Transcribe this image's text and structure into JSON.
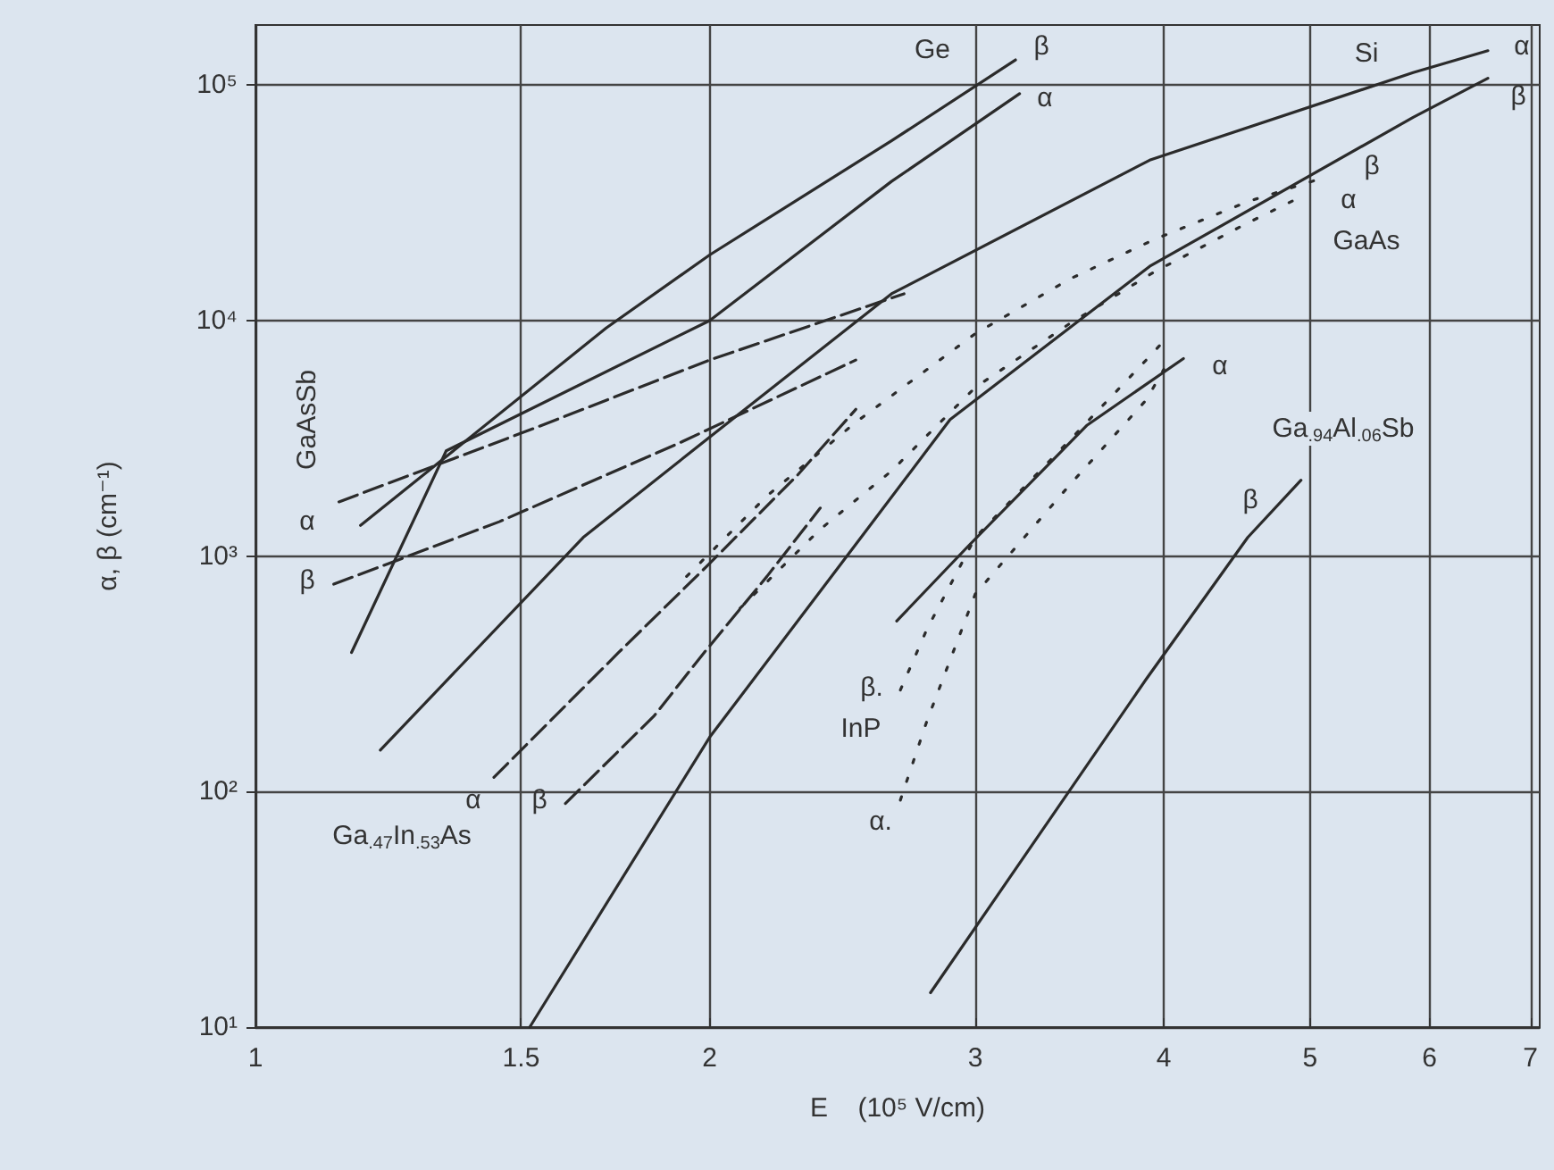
{
  "chart_data": {
    "type": "line",
    "xlabel": "E    (10⁵ V/cm)",
    "ylabel": "α, β (cm⁻¹)",
    "log": "xy",
    "grid": true,
    "line_style": "solid",
    "xlim": [
      1,
      7.1
    ],
    "xticks": [
      1,
      1.5,
      2,
      3,
      4,
      5,
      6,
      7
    ],
    "ylim": [
      10,
      180000
    ],
    "yticks": [
      {
        "value": 10,
        "label": "10¹"
      },
      {
        "value": 100,
        "label": "10²"
      },
      {
        "value": 1000,
        "label": "10³"
      },
      {
        "value": 10000,
        "label": "10⁴"
      },
      {
        "value": 100000,
        "label": "10⁵"
      }
    ],
    "series": [
      {
        "color": "#2b2b2b",
        "x": [
          1.174,
          1.708,
          2,
          2.64,
          3.19
        ],
        "values": [
          1350,
          9300,
          19000,
          58000,
          128000
        ]
      },
      {
        "color": "#2b2b2b",
        "x": [
          1.158,
          1.338,
          2,
          2.64,
          3.21
        ],
        "values": [
          390,
          2800,
          10000,
          39000,
          92000
        ]
      },
      {
        "color": "#2b2b2b",
        "x": [
          1.21,
          1.649,
          2,
          2.64,
          3.915,
          5.853,
          6.56
        ],
        "values": [
          150,
          1200,
          3200,
          13000,
          48000,
          113000,
          140000
        ]
      },
      {
        "color": "#2b2b2b",
        "x": [
          1.52,
          2,
          2.52,
          2.887,
          3.915,
          5.853,
          6.56
        ],
        "values": [
          10,
          170,
          1200,
          3800,
          17000,
          73000,
          107000
        ]
      },
      {
        "color": "#2b2b2b",
        "x": [
          2.661,
          2.967,
          3.559,
          4.122
        ],
        "values": [
          530,
          1100,
          3600,
          6900
        ]
      },
      {
        "color": "#2b2b2b",
        "x": [
          2.802,
          3.894,
          4.547,
          4.932
        ],
        "values": [
          14,
          300,
          1200,
          2100
        ]
      },
      {
        "color": "#2b2b2b",
        "line_style": "dashed",
        "x": [
          1.136,
          1.532,
          2,
          2.691
        ],
        "values": [
          1700,
          3500,
          6800,
          13000
        ]
      },
      {
        "color": "#2b2b2b",
        "line_style": "dashed",
        "x": [
          1.127,
          1.451,
          1.905,
          2.5
        ],
        "values": [
          760,
          1400,
          3000,
          6800
        ]
      },
      {
        "color": "#2b2b2b",
        "line_style": "dashed",
        "x": [
          1.439,
          1.741,
          2,
          2.286,
          2.5
        ],
        "values": [
          115,
          390,
          930,
          2200,
          4200
        ]
      },
      {
        "color": "#2b2b2b",
        "line_style": "dashed",
        "x": [
          1.605,
          1.838,
          1.984,
          2.183,
          2.368
        ],
        "values": [
          89,
          210,
          390,
          820,
          1600
        ]
      },
      {
        "color": "#2b2b2b",
        "line_style": "dotted",
        "x": [
          1.931,
          2.183,
          2.5,
          3,
          3.464,
          3.936,
          4.547,
          5.138
        ],
        "values": [
          820,
          1800,
          3700,
          8800,
          15000,
          22000,
          32000,
          41000
        ]
      },
      {
        "color": "#2b2b2b",
        "line_style": "dotted",
        "x": [
          2.095,
          2.368,
          2.64,
          3,
          3.464,
          3.936,
          4.547,
          4.906
        ],
        "values": [
          600,
          1300,
          2300,
          5200,
          9700,
          16000,
          26000,
          33000
        ]
      },
      {
        "color": "#2b2b2b",
        "line_style": "dotted",
        "x": [
          2.676,
          2.787,
          3,
          3.464,
          3.894,
          4.022
        ],
        "values": [
          270,
          490,
          1200,
          3100,
          6800,
          8500
        ]
      },
      {
        "color": "#2b2b2b",
        "line_style": "dotted",
        "x": [
          2.676,
          2.787,
          3,
          3.464,
          3.894,
          4.0
        ],
        "values": [
          92,
          200,
          690,
          2000,
          4600,
          6200
        ]
      }
    ],
    "annotations": [
      "Ge",
      "β",
      "α",
      "Si",
      "α",
      "β",
      "β",
      "α",
      "GaAs",
      "α",
      "Ga$_{.94}$Al$_{.06}$Sb",
      "β",
      "GaAsSb",
      "α",
      "β",
      "α",
      "β",
      "Ga$_{.47}$In$_{.53}$As",
      "β.",
      "InP",
      "α."
    ]
  }
}
